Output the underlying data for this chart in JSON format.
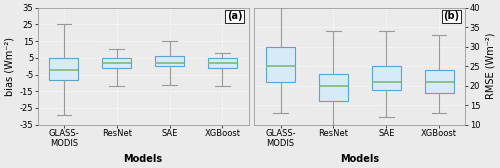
{
  "categories": [
    "GLASS-\nMODIS",
    "ResNet",
    "SAE",
    "XGBoost"
  ],
  "bias_boxes": [
    {
      "whislo": -29,
      "q1": -8,
      "med": -2,
      "q3": 5,
      "whishi": 25
    },
    {
      "whislo": -12,
      "q1": -1,
      "med": 2,
      "q3": 5,
      "whishi": 10
    },
    {
      "whislo": -11,
      "q1": 0,
      "med": 2,
      "q3": 6,
      "whishi": 15
    },
    {
      "whislo": -12,
      "q1": -1,
      "med": 2,
      "q3": 5,
      "whishi": 8
    }
  ],
  "rmse_boxes": [
    {
      "whislo": 13,
      "q1": 21,
      "med": 25,
      "q3": 30,
      "whishi": 42
    },
    {
      "whislo": 10,
      "q1": 16,
      "med": 20,
      "q3": 23,
      "whishi": 34
    },
    {
      "whislo": 12,
      "q1": 19,
      "med": 21,
      "q3": 25,
      "whishi": 34
    },
    {
      "whislo": 13,
      "q1": 18,
      "med": 21,
      "q3": 24,
      "whishi": 33
    }
  ],
  "bias_ylim": [
    -35,
    35
  ],
  "bias_yticks": [
    -35,
    -25,
    -15,
    -5,
    5,
    15,
    25,
    35
  ],
  "rmse_ylim": [
    10,
    40
  ],
  "rmse_yticks": [
    10,
    15,
    20,
    25,
    30,
    35,
    40
  ],
  "box_facecolor": "#d6eaf8",
  "box_edgecolor": "#5ba4cf",
  "median_color": "#7dbb7d",
  "whisker_color": "#999999",
  "cap_color": "#999999",
  "xlabel": "Models",
  "bias_ylabel": "bias (Wm⁻²)",
  "rmse_ylabel": "RMSE (Wm⁻²)",
  "label_a": "(a)",
  "label_b": "(b)",
  "background_color": "#ebebeb",
  "grid_color": "#ffffff",
  "tick_fontsize": 6,
  "label_fontsize": 7,
  "axis_label_fontsize": 7
}
